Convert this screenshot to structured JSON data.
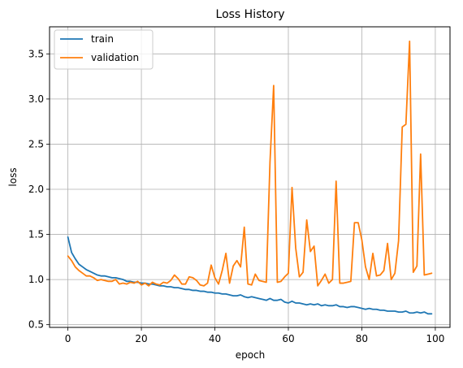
{
  "chart_data": {
    "type": "line",
    "title": "Loss History",
    "xlabel": "epoch",
    "ylabel": "loss",
    "xlim": [
      -5,
      104
    ],
    "ylim": [
      0.47,
      3.8
    ],
    "xticks": [
      0,
      20,
      40,
      60,
      80,
      100
    ],
    "yticks": [
      0.5,
      1.0,
      1.5,
      2.0,
      2.5,
      3.0,
      3.5
    ],
    "xtick_labels": [
      "0",
      "20",
      "40",
      "60",
      "80",
      "100"
    ],
    "ytick_labels": [
      "0.5",
      "1.0",
      "1.5",
      "2.0",
      "2.5",
      "3.0",
      "3.5"
    ],
    "grid": true,
    "legend_position": "top-left",
    "series": [
      {
        "name": "train",
        "color": "#1f77b4",
        "x": [
          0,
          1,
          2,
          3,
          4,
          5,
          6,
          7,
          8,
          9,
          10,
          11,
          12,
          13,
          14,
          15,
          16,
          17,
          18,
          19,
          20,
          21,
          22,
          23,
          24,
          25,
          26,
          27,
          28,
          29,
          30,
          31,
          32,
          33,
          34,
          35,
          36,
          37,
          38,
          39,
          40,
          41,
          42,
          43,
          44,
          45,
          46,
          47,
          48,
          49,
          50,
          51,
          52,
          53,
          54,
          55,
          56,
          57,
          58,
          59,
          60,
          61,
          62,
          63,
          64,
          65,
          66,
          67,
          68,
          69,
          70,
          71,
          72,
          73,
          74,
          75,
          76,
          77,
          78,
          79,
          80,
          81,
          82,
          83,
          84,
          85,
          86,
          87,
          88,
          89,
          90,
          91,
          92,
          93,
          94,
          95,
          96,
          97,
          98,
          99
        ],
        "values": [
          1.47,
          1.3,
          1.23,
          1.17,
          1.14,
          1.11,
          1.09,
          1.07,
          1.05,
          1.04,
          1.04,
          1.03,
          1.02,
          1.02,
          1.01,
          1.0,
          0.98,
          0.98,
          0.97,
          0.97,
          0.96,
          0.96,
          0.95,
          0.95,
          0.94,
          0.93,
          0.93,
          0.92,
          0.92,
          0.91,
          0.91,
          0.9,
          0.89,
          0.89,
          0.88,
          0.88,
          0.87,
          0.87,
          0.86,
          0.86,
          0.85,
          0.85,
          0.84,
          0.84,
          0.83,
          0.82,
          0.82,
          0.83,
          0.81,
          0.8,
          0.81,
          0.8,
          0.79,
          0.78,
          0.77,
          0.79,
          0.77,
          0.77,
          0.78,
          0.75,
          0.74,
          0.76,
          0.74,
          0.74,
          0.73,
          0.72,
          0.73,
          0.72,
          0.73,
          0.71,
          0.72,
          0.71,
          0.71,
          0.72,
          0.7,
          0.7,
          0.69,
          0.7,
          0.7,
          0.69,
          0.68,
          0.67,
          0.68,
          0.67,
          0.67,
          0.66,
          0.66,
          0.65,
          0.65,
          0.65,
          0.64,
          0.64,
          0.65,
          0.63,
          0.63,
          0.64,
          0.63,
          0.64,
          0.62,
          0.62
        ]
      },
      {
        "name": "validation",
        "color": "#ff7f0e",
        "x": [
          0,
          1,
          2,
          3,
          4,
          5,
          6,
          7,
          8,
          9,
          10,
          11,
          12,
          13,
          14,
          15,
          16,
          17,
          18,
          19,
          20,
          21,
          22,
          23,
          24,
          25,
          26,
          27,
          28,
          29,
          30,
          31,
          32,
          33,
          34,
          35,
          36,
          37,
          38,
          39,
          40,
          41,
          42,
          43,
          44,
          45,
          46,
          47,
          48,
          49,
          50,
          51,
          52,
          53,
          54,
          55,
          56,
          57,
          58,
          59,
          60,
          61,
          62,
          63,
          64,
          65,
          66,
          67,
          68,
          69,
          70,
          71,
          72,
          73,
          74,
          75,
          76,
          77,
          78,
          79,
          80,
          81,
          82,
          83,
          84,
          85,
          86,
          87,
          88,
          89,
          90,
          91,
          92,
          93,
          94,
          95,
          96,
          97,
          98,
          99
        ],
        "values": [
          1.26,
          1.21,
          1.14,
          1.1,
          1.07,
          1.04,
          1.04,
          1.02,
          0.99,
          1.0,
          0.99,
          0.98,
          0.98,
          1.0,
          0.95,
          0.96,
          0.95,
          0.97,
          0.96,
          0.98,
          0.94,
          0.96,
          0.93,
          0.97,
          0.95,
          0.94,
          0.97,
          0.96,
          0.99,
          1.05,
          1.01,
          0.95,
          0.95,
          1.03,
          1.02,
          0.99,
          0.94,
          0.93,
          0.96,
          1.16,
          1.02,
          0.95,
          1.1,
          1.29,
          0.96,
          1.15,
          1.21,
          1.14,
          1.58,
          0.95,
          0.94,
          1.06,
          0.99,
          0.98,
          0.97,
          2.3,
          3.15,
          0.97,
          0.98,
          1.03,
          1.07,
          2.02,
          1.35,
          1.03,
          1.08,
          1.66,
          1.31,
          1.37,
          0.93,
          0.99,
          1.06,
          0.96,
          1.0,
          2.09,
          0.96,
          0.96,
          0.97,
          0.98,
          1.63,
          1.63,
          1.44,
          1.14,
          1.0,
          1.29,
          1.04,
          1.05,
          1.1,
          1.4,
          1.0,
          1.07,
          1.43,
          2.69,
          2.72,
          3.64,
          1.08,
          1.15,
          2.39,
          1.05,
          1.06,
          1.07
        ]
      }
    ]
  }
}
